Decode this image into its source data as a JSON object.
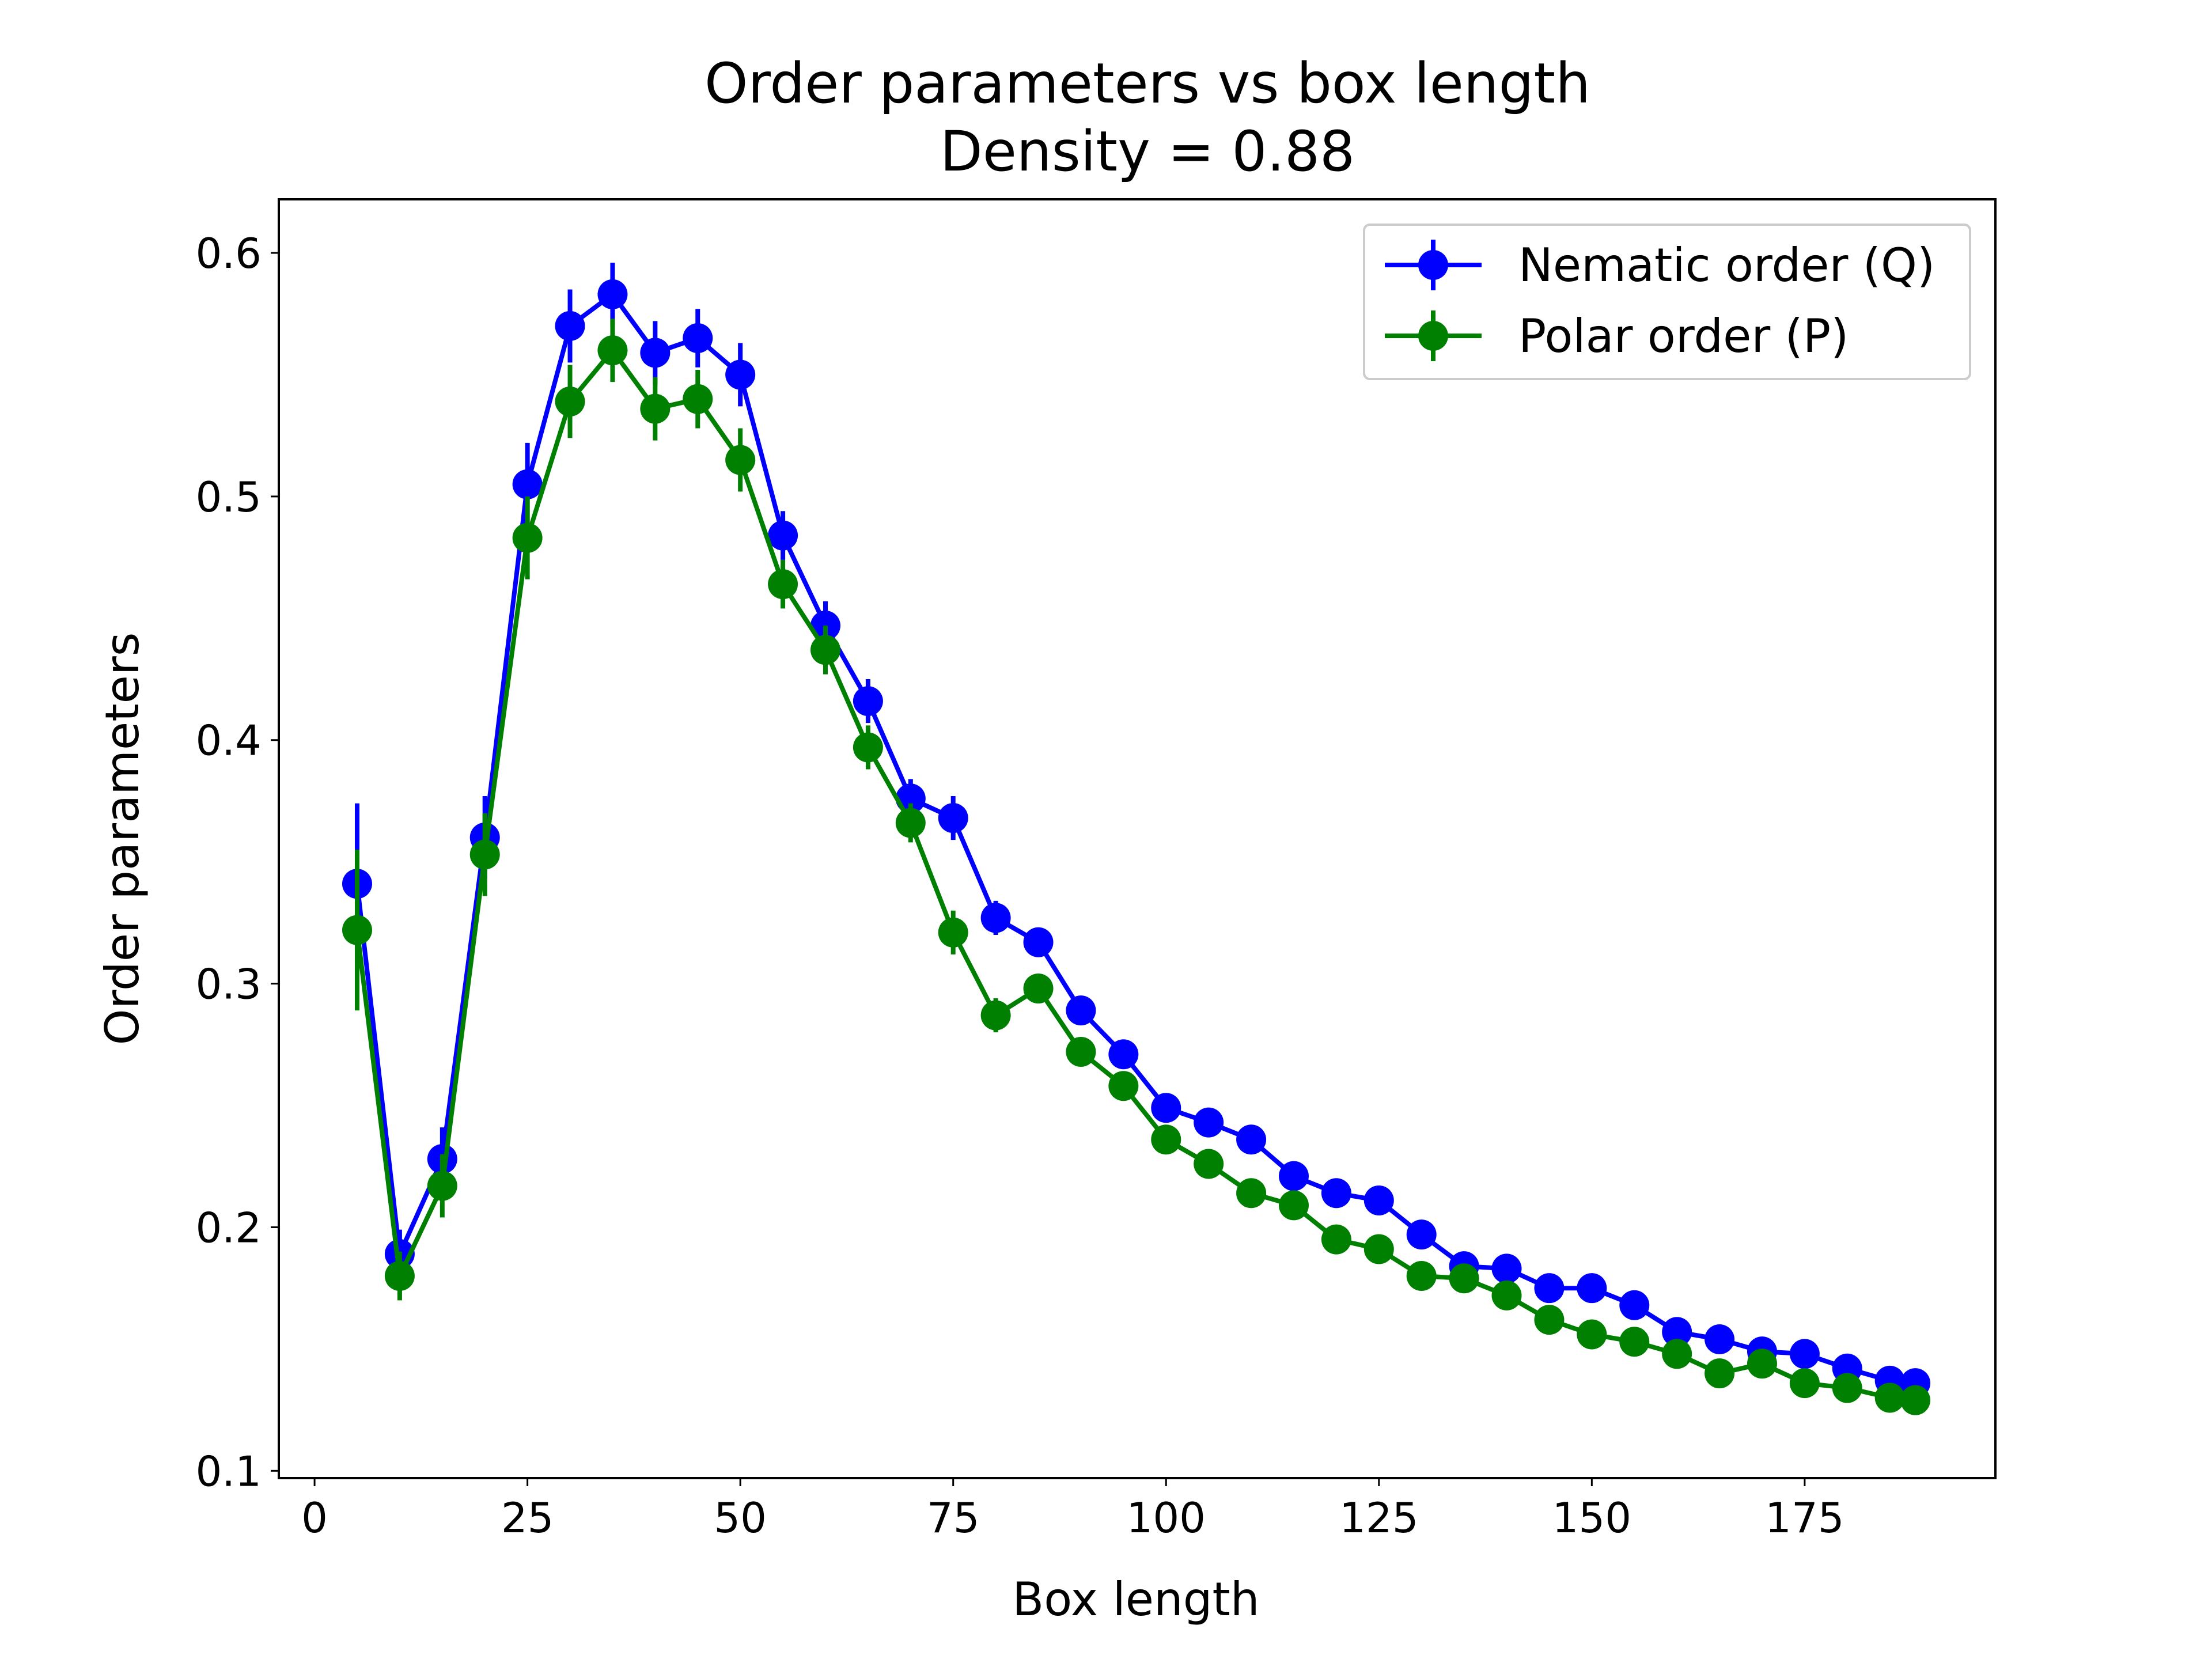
{
  "chart_data": {
    "type": "line",
    "title": "Order parameters vs box length",
    "subtitle": "Density = 0.88",
    "xlabel": "Box length",
    "ylabel": "Order parameters",
    "xlim": [
      -4.2,
      197.4
    ],
    "ylim": [
      0.097,
      0.622
    ],
    "xticks": [
      0,
      25,
      50,
      75,
      100,
      125,
      150,
      175
    ],
    "xtick_labels": [
      "0",
      "25",
      "50",
      "75",
      "100",
      "125",
      "150",
      "175"
    ],
    "yticks": [
      0.1,
      0.2,
      0.3,
      0.4,
      0.5,
      0.6
    ],
    "ytick_labels": [
      "0.1",
      "0.2",
      "0.3",
      "0.4",
      "0.5",
      "0.6"
    ],
    "grid": false,
    "legend": "top-right",
    "x": [
      5,
      10,
      15,
      20,
      25,
      30,
      35,
      40,
      45,
      50,
      55,
      60,
      65,
      70,
      75,
      80,
      85,
      90,
      95,
      100,
      105,
      110,
      115,
      120,
      125,
      130,
      135,
      140,
      145,
      150,
      155,
      160,
      165,
      170,
      175,
      180,
      185,
      188
    ],
    "series": [
      {
        "name": "Nematic order (Q)",
        "color": "#0000ff",
        "values": [
          0.341,
          0.189,
          0.228,
          0.36,
          0.505,
          0.57,
          0.583,
          0.559,
          0.565,
          0.55,
          0.484,
          0.447,
          0.416,
          0.376,
          0.368,
          0.327,
          0.317,
          0.289,
          0.271,
          0.249,
          0.243,
          0.236,
          0.221,
          0.214,
          0.211,
          0.197,
          0.184,
          0.183,
          0.175,
          0.175,
          0.168,
          0.157,
          0.154,
          0.149,
          0.148,
          0.142,
          0.137,
          0.136
        ],
        "errors": [
          0.033,
          0.01,
          0.013,
          0.017,
          0.017,
          0.015,
          0.013,
          0.013,
          0.012,
          0.013,
          0.01,
          0.01,
          0.009,
          0.008,
          0.009,
          0.007,
          0.006,
          0.006,
          0.006,
          0.006,
          0.005,
          0.005,
          0.005,
          0.005,
          0.005,
          0.005,
          0.005,
          0.005,
          0.005,
          0.005,
          0.005,
          0.005,
          0.005,
          0.005,
          0.005,
          0.005,
          0.005,
          0.005
        ]
      },
      {
        "name": "Polar order (P)",
        "color": "#008000",
        "values": [
          0.322,
          0.18,
          0.217,
          0.353,
          0.483,
          0.539,
          0.56,
          0.536,
          0.54,
          0.515,
          0.464,
          0.437,
          0.397,
          0.366,
          0.321,
          0.287,
          0.298,
          0.272,
          0.258,
          0.236,
          0.226,
          0.214,
          0.209,
          0.195,
          0.191,
          0.18,
          0.179,
          0.172,
          0.162,
          0.156,
          0.153,
          0.148,
          0.14,
          0.144,
          0.136,
          0.134,
          0.13,
          0.129
        ]
      }
    ]
  }
}
